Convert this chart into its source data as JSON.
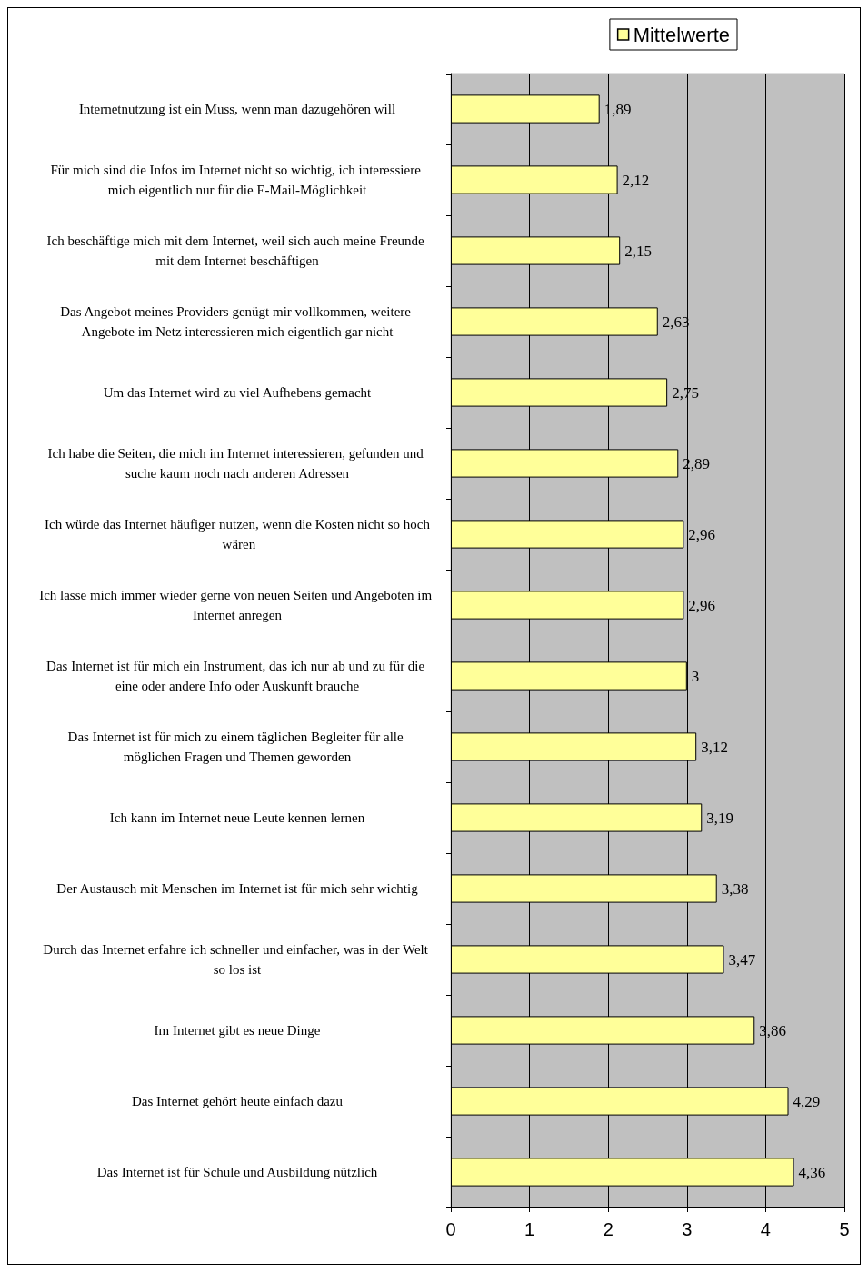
{
  "chart_data": {
    "type": "bar",
    "orientation": "horizontal",
    "categories": [
      "Internetnutzung ist ein Muss, wenn man dazugehören will",
      "Für mich sind die Infos im Internet nicht so wichtig, ich interessiere mich eigentlich nur für die E-Mail-Möglichkeit",
      "Ich beschäftige mich mit dem Internet, weil sich auch meine Freunde mit dem Internet beschäftigen",
      "Das Angebot meines Providers genügt mir vollkommen, weitere Angebote im Netz interessieren mich eigentlich gar nicht",
      "Um das Internet wird zu viel Aufhebens gemacht",
      "Ich habe die Seiten, die mich im Internet interessieren, gefunden und suche kaum noch nach anderen Adressen",
      "Ich würde das Internet häufiger nutzen, wenn die Kosten nicht so hoch wären",
      "Ich lasse mich immer wieder gerne von neuen Seiten und Angeboten im Internet anregen",
      "Das Internet ist für mich ein Instrument, das ich nur ab und zu für die eine oder andere Info oder Auskunft brauche",
      "Das Internet ist für mich zu einem täglichen Begleiter für alle möglichen Fragen und Themen geworden",
      "Ich kann im Internet neue Leute kennen lernen",
      "Der Austausch mit Menschen im Internet ist für mich sehr wichtig",
      "Durch das Internet erfahre ich schneller und einfacher, was in der Welt so los ist",
      "Im Internet gibt es neue Dinge",
      "Das Internet gehört heute einfach dazu",
      "Das Internet ist für Schule und Ausbildung nützlich"
    ],
    "series": [
      {
        "name": "Mittelwerte",
        "color": "#ffff99",
        "values": [
          1.89,
          2.12,
          2.15,
          2.63,
          2.75,
          2.89,
          2.96,
          2.96,
          3,
          3.12,
          3.19,
          3.38,
          3.47,
          3.86,
          4.29,
          4.36
        ],
        "value_labels": [
          "1,89",
          "2,12",
          "2,15",
          "2,63",
          "2,75",
          "2,89",
          "2,96",
          "2,96",
          "3",
          "3,12",
          "3,19",
          "3,38",
          "3,47",
          "3,86",
          "4,29",
          "4,36"
        ]
      }
    ],
    "xlim": [
      0,
      5
    ],
    "xticks": [
      0,
      1,
      2,
      3,
      4,
      5
    ],
    "grid": "x",
    "legend": "top right"
  }
}
